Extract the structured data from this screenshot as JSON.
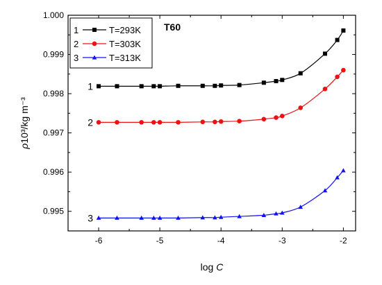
{
  "chart_data": {
    "type": "line",
    "annotation": "T60",
    "xlabel_prefix": "log ",
    "xlabel_var": "C",
    "ylabel_rho": "ρ",
    "ylabel_rest": "10³/kg m⁻³",
    "xlim": [
      -6.5,
      -1.8
    ],
    "ylim": [
      0.9945,
      1.0
    ],
    "x_ticks": [
      -6,
      -5,
      -4,
      -3,
      -2
    ],
    "x_tick_labels": [
      "-6",
      "-5",
      "-4",
      "-3",
      "-2"
    ],
    "y_ticks": [
      0.995,
      0.996,
      0.997,
      0.998,
      0.999,
      1.0
    ],
    "y_tick_labels": [
      "0.995",
      "0.996",
      "0.997",
      "0.998",
      "0.999",
      "1.000"
    ],
    "grid": false,
    "legend_position": "top-left",
    "series": [
      {
        "name": "T=293K",
        "number": "1",
        "color": "#000000",
        "marker": "square",
        "x": [
          -6,
          -5.7,
          -5.3,
          -5.1,
          -5,
          -4.7,
          -4.3,
          -4.1,
          -4,
          -3.7,
          -3.3,
          -3.1,
          -3,
          -2.7,
          -2.3,
          -2.1,
          -2
        ],
        "y": [
          0.99819,
          0.99819,
          0.99819,
          0.99819,
          0.99819,
          0.9982,
          0.9982,
          0.9982,
          0.99821,
          0.99822,
          0.99828,
          0.99832,
          0.99835,
          0.99852,
          0.99902,
          0.99937,
          0.99961
        ]
      },
      {
        "name": "T=303K",
        "number": "2",
        "color": "#ee1111",
        "marker": "circle",
        "x": [
          -6,
          -5.7,
          -5.3,
          -5.1,
          -5,
          -4.7,
          -4.3,
          -4.1,
          -4,
          -3.7,
          -3.3,
          -3.1,
          -3,
          -2.7,
          -2.3,
          -2.1,
          -2
        ],
        "y": [
          0.99727,
          0.99727,
          0.99727,
          0.99727,
          0.99727,
          0.99727,
          0.99728,
          0.99728,
          0.99729,
          0.9973,
          0.99735,
          0.99739,
          0.99743,
          0.99764,
          0.99812,
          0.99843,
          0.9986
        ]
      },
      {
        "name": "T=313K",
        "number": "3",
        "color": "#1111ee",
        "marker": "triangle",
        "x": [
          -6,
          -5.7,
          -5.3,
          -5.1,
          -5,
          -4.7,
          -4.3,
          -4.1,
          -4,
          -3.7,
          -3.3,
          -3.1,
          -3,
          -2.7,
          -2.3,
          -2.1,
          -2
        ],
        "y": [
          0.99483,
          0.99483,
          0.99483,
          0.99483,
          0.99483,
          0.99483,
          0.99484,
          0.99484,
          0.99485,
          0.99487,
          0.9949,
          0.99494,
          0.99496,
          0.99511,
          0.99553,
          0.99586,
          0.99604
        ]
      }
    ]
  }
}
